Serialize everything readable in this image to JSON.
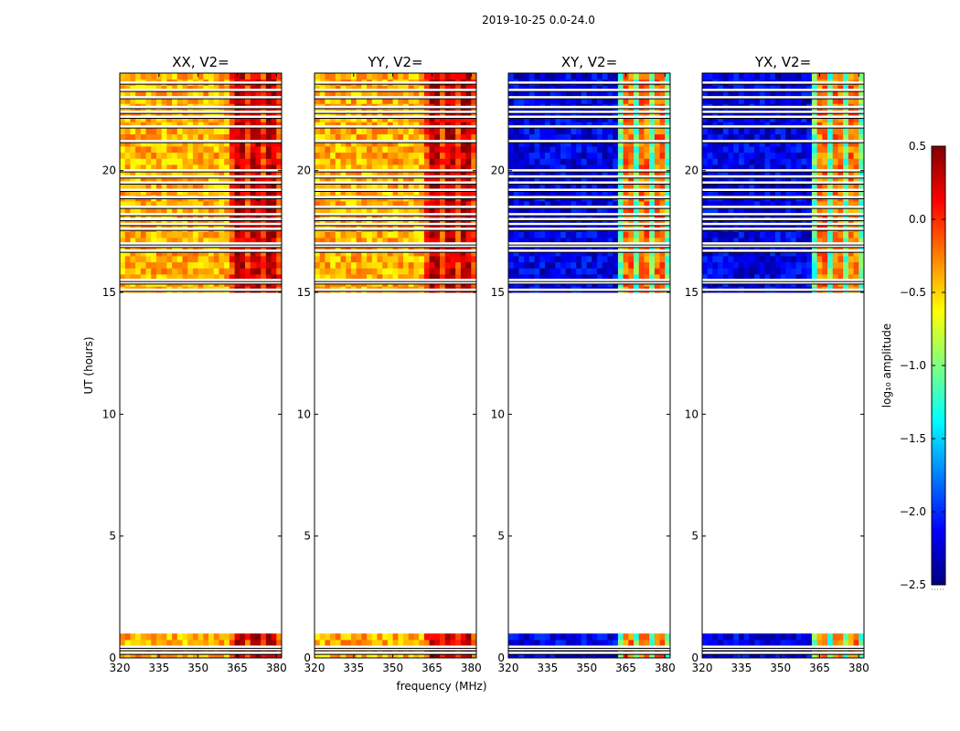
{
  "chart_data": {
    "type": "heatmap",
    "suptitle": "2019-10-25 0.0-24.0",
    "xlabel": "frequency (MHz)",
    "ylabel": "UT (hours)",
    "xlim": [
      320,
      382
    ],
    "ylim": [
      0,
      24
    ],
    "xticks": [
      320,
      335,
      350,
      365,
      380
    ],
    "yticks": [
      0,
      5,
      10,
      15,
      20
    ],
    "panels": [
      {
        "title": "XX, V2=",
        "polarization": "XX"
      },
      {
        "title": "YY, V2=",
        "polarization": "YY"
      },
      {
        "title": "XY, V2=",
        "polarization": "XY"
      },
      {
        "title": "YX, V2=",
        "polarization": "YX"
      }
    ],
    "colorbar": {
      "label": "log₁₀ amplitude",
      "colormap": "jet",
      "range": [
        -2.5,
        0.5
      ],
      "ticks": [
        0.5,
        0.0,
        -0.5,
        -1.0,
        -1.5,
        -2.0,
        -2.5
      ],
      "tick_labels": [
        "0.5",
        "0.0",
        "−0.5",
        "−1.0",
        "−1.5",
        "−2.0",
        "−2.5"
      ]
    },
    "data_hour_ranges": [
      [
        0.0,
        1.0
      ],
      [
        15.0,
        24.0
      ]
    ],
    "approx_levels": {
      "XX": {
        "low_freq": -0.4,
        "high_freq": 0.3
      },
      "YY": {
        "low_freq": -0.4,
        "high_freq": 0.3
      },
      "XY": {
        "low_freq": -2.2,
        "high_freq": -0.2
      },
      "YX": {
        "low_freq": -2.2,
        "high_freq": -0.2
      }
    }
  }
}
